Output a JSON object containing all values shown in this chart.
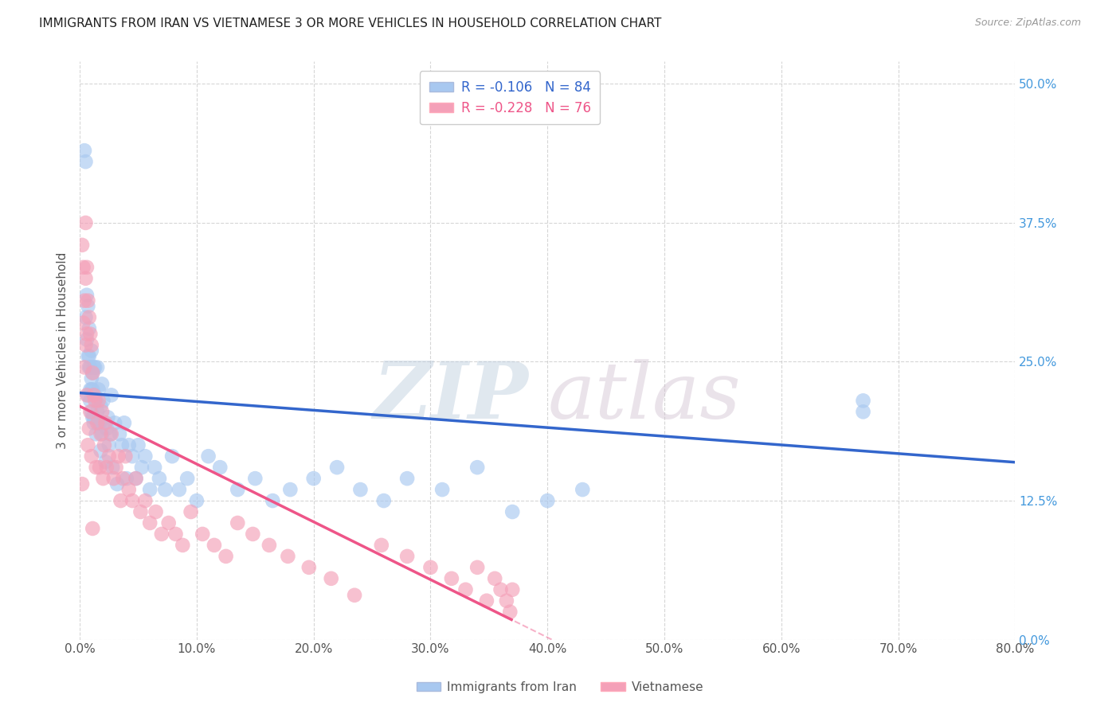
{
  "title": "IMMIGRANTS FROM IRAN VS VIETNAMESE 3 OR MORE VEHICLES IN HOUSEHOLD CORRELATION CHART",
  "source": "Source: ZipAtlas.com",
  "ylabel_label": "3 or more Vehicles in Household",
  "xlim": [
    0.0,
    0.8
  ],
  "ylim": [
    0.0,
    0.52
  ],
  "yticks": [
    0.0,
    0.125,
    0.25,
    0.375,
    0.5
  ],
  "xticks": [
    0.0,
    0.1,
    0.2,
    0.3,
    0.4,
    0.5,
    0.6,
    0.7,
    0.8
  ],
  "legend_labels": [
    "Immigrants from Iran",
    "Vietnamese"
  ],
  "color_blue": "#A8C8F0",
  "color_pink": "#F4A0B8",
  "line_blue": "#3366CC",
  "line_pink": "#EE5588",
  "iran_r": -0.106,
  "viet_r": -0.228,
  "iran_n": 84,
  "viet_n": 76,
  "iran_x": [
    0.004,
    0.005,
    0.005,
    0.006,
    0.006,
    0.007,
    0.007,
    0.007,
    0.008,
    0.008,
    0.008,
    0.009,
    0.009,
    0.009,
    0.01,
    0.01,
    0.01,
    0.01,
    0.011,
    0.011,
    0.011,
    0.012,
    0.012,
    0.012,
    0.013,
    0.013,
    0.014,
    0.014,
    0.015,
    0.015,
    0.016,
    0.016,
    0.017,
    0.018,
    0.018,
    0.019,
    0.019,
    0.02,
    0.021,
    0.022,
    0.023,
    0.024,
    0.025,
    0.026,
    0.027,
    0.028,
    0.03,
    0.032,
    0.034,
    0.036,
    0.038,
    0.04,
    0.042,
    0.045,
    0.048,
    0.05,
    0.053,
    0.056,
    0.06,
    0.064,
    0.068,
    0.073,
    0.079,
    0.085,
    0.092,
    0.1,
    0.11,
    0.12,
    0.135,
    0.15,
    0.165,
    0.18,
    0.2,
    0.22,
    0.24,
    0.26,
    0.28,
    0.31,
    0.34,
    0.37,
    0.4,
    0.43,
    0.67,
    0.67
  ],
  "iran_y": [
    0.44,
    0.43,
    0.29,
    0.31,
    0.27,
    0.255,
    0.3,
    0.22,
    0.28,
    0.245,
    0.255,
    0.225,
    0.245,
    0.215,
    0.235,
    0.205,
    0.225,
    0.26,
    0.24,
    0.2,
    0.225,
    0.2,
    0.245,
    0.195,
    0.22,
    0.245,
    0.185,
    0.215,
    0.205,
    0.245,
    0.195,
    0.225,
    0.195,
    0.21,
    0.17,
    0.23,
    0.185,
    0.215,
    0.195,
    0.16,
    0.19,
    0.2,
    0.175,
    0.185,
    0.22,
    0.155,
    0.195,
    0.14,
    0.185,
    0.175,
    0.195,
    0.145,
    0.175,
    0.165,
    0.145,
    0.175,
    0.155,
    0.165,
    0.135,
    0.155,
    0.145,
    0.135,
    0.165,
    0.135,
    0.145,
    0.125,
    0.165,
    0.155,
    0.135,
    0.145,
    0.125,
    0.135,
    0.145,
    0.155,
    0.135,
    0.125,
    0.145,
    0.135,
    0.155,
    0.115,
    0.125,
    0.135,
    0.215,
    0.205
  ],
  "viet_x": [
    0.002,
    0.002,
    0.003,
    0.003,
    0.004,
    0.004,
    0.005,
    0.005,
    0.005,
    0.006,
    0.006,
    0.006,
    0.007,
    0.007,
    0.008,
    0.008,
    0.009,
    0.009,
    0.01,
    0.01,
    0.011,
    0.011,
    0.012,
    0.013,
    0.014,
    0.015,
    0.016,
    0.017,
    0.018,
    0.019,
    0.02,
    0.021,
    0.022,
    0.023,
    0.025,
    0.027,
    0.029,
    0.031,
    0.033,
    0.035,
    0.037,
    0.039,
    0.042,
    0.045,
    0.048,
    0.052,
    0.056,
    0.06,
    0.065,
    0.07,
    0.076,
    0.082,
    0.088,
    0.095,
    0.105,
    0.115,
    0.125,
    0.135,
    0.148,
    0.162,
    0.178,
    0.196,
    0.215,
    0.235,
    0.258,
    0.28,
    0.3,
    0.318,
    0.33,
    0.34,
    0.348,
    0.355,
    0.36,
    0.365,
    0.368,
    0.37
  ],
  "viet_y": [
    0.355,
    0.14,
    0.335,
    0.285,
    0.305,
    0.245,
    0.325,
    0.265,
    0.375,
    0.335,
    0.275,
    0.22,
    0.305,
    0.175,
    0.29,
    0.19,
    0.275,
    0.205,
    0.265,
    0.165,
    0.24,
    0.1,
    0.22,
    0.215,
    0.155,
    0.195,
    0.215,
    0.155,
    0.185,
    0.205,
    0.145,
    0.175,
    0.195,
    0.155,
    0.165,
    0.185,
    0.145,
    0.155,
    0.165,
    0.125,
    0.145,
    0.165,
    0.135,
    0.125,
    0.145,
    0.115,
    0.125,
    0.105,
    0.115,
    0.095,
    0.105,
    0.095,
    0.085,
    0.115,
    0.095,
    0.085,
    0.075,
    0.105,
    0.095,
    0.085,
    0.075,
    0.065,
    0.055,
    0.04,
    0.085,
    0.075,
    0.065,
    0.055,
    0.045,
    0.065,
    0.035,
    0.055,
    0.045,
    0.035,
    0.025,
    0.045
  ]
}
